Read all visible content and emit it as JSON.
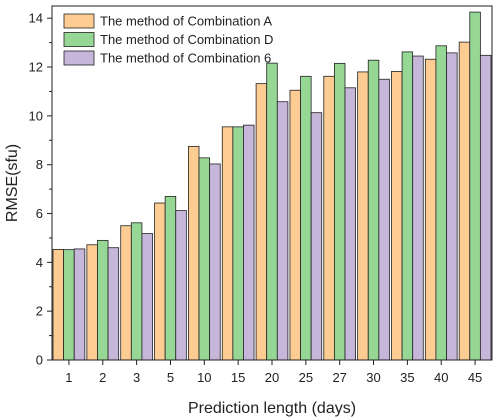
{
  "chart_data": {
    "type": "bar",
    "xlabel": "Prediction length (days)",
    "ylabel": "RMSE(sfu)",
    "ylim": [
      0,
      14.5
    ],
    "yticks": [
      0,
      2,
      4,
      6,
      8,
      10,
      12,
      14
    ],
    "categories": [
      "1",
      "2",
      "3",
      "5",
      "10",
      "15",
      "20",
      "25",
      "27",
      "30",
      "35",
      "40",
      "45"
    ],
    "legend_position": "top-left",
    "grid": false,
    "series": [
      {
        "name": "The method of Combination A",
        "color": "#FDCC92",
        "values": [
          4.53,
          4.72,
          5.5,
          6.43,
          8.75,
          9.55,
          11.32,
          11.05,
          11.62,
          11.8,
          11.82,
          12.32,
          13.02
        ]
      },
      {
        "name": "The method of Combination D",
        "color": "#96D796",
        "values": [
          4.52,
          4.9,
          5.62,
          6.7,
          8.28,
          9.55,
          12.16,
          11.62,
          12.15,
          12.28,
          12.62,
          12.87,
          14.25
        ]
      },
      {
        "name": "The method of Combination 6",
        "color": "#C6B6DA",
        "values": [
          4.55,
          4.6,
          5.18,
          6.12,
          8.03,
          9.62,
          10.58,
          10.13,
          11.15,
          11.5,
          12.45,
          12.58,
          12.48
        ]
      }
    ]
  }
}
